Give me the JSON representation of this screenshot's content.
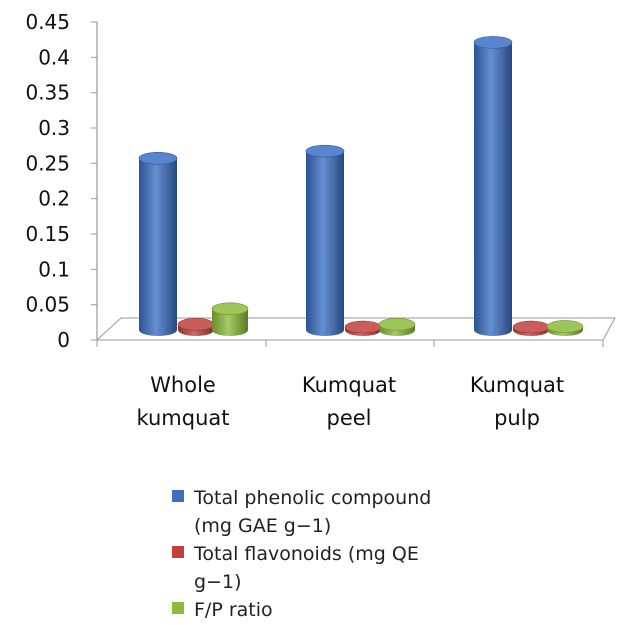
{
  "chart_data": {
    "type": "bar",
    "subtype": "3d-clustered-cylinder",
    "categories": [
      "Whole\nkumquat",
      "Kumquat\npeel",
      "Kumquat\npulp"
    ],
    "series": [
      {
        "name": "Total phenolic compound\n(mg GAE g−1)",
        "values": [
          0.243,
          0.253,
          0.407
        ],
        "color": "#3a6fc4"
      },
      {
        "name": "Total flavonoids (mg QE\ng−1)",
        "values": [
          0.008,
          0.003,
          0.003
        ],
        "color": "#c0403c"
      },
      {
        "name": "F/P ratio",
        "values": [
          0.03,
          0.008,
          0.005
        ],
        "color": "#8dbb3a"
      }
    ],
    "y_ticks": [
      "0",
      "0.05",
      "0.1",
      "0.15",
      "0.2",
      "0.25",
      "0.3",
      "0.35",
      "0.4",
      "0.45"
    ],
    "ylim": [
      0,
      0.45
    ],
    "grid": false,
    "legend_position": "bottom"
  }
}
